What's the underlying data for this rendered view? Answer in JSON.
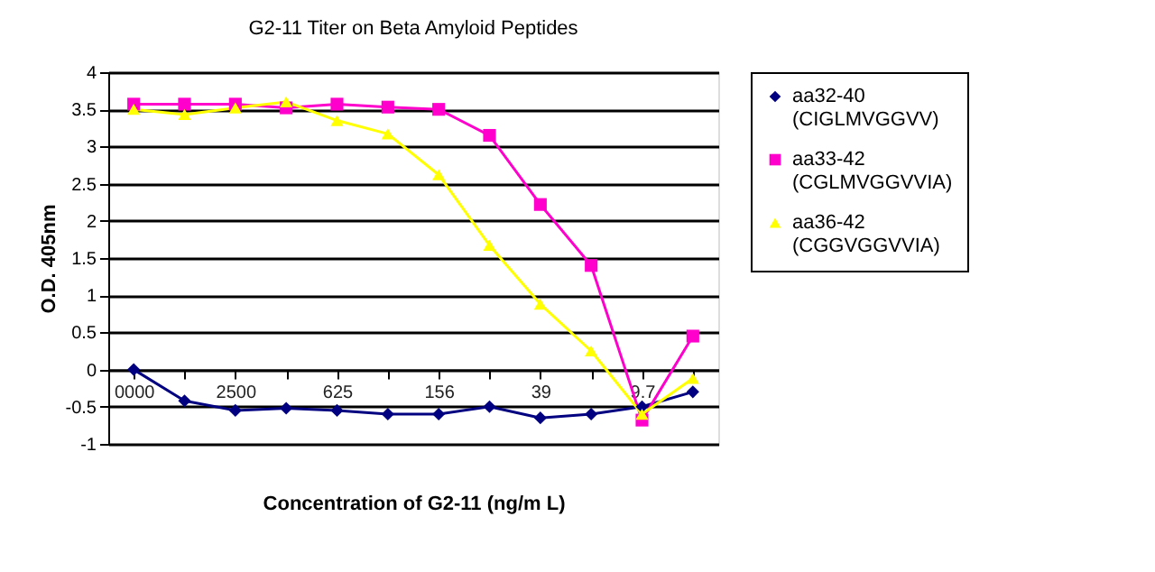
{
  "chart_data": {
    "type": "line",
    "title": "G2-11 Titer on Beta Amyloid Peptides",
    "xlabel": "Concentration of G2-11 (ng/m L)",
    "ylabel": "O.D. 405nm",
    "categories": [
      "0000",
      null,
      "2500",
      null,
      "625",
      null,
      "156",
      null,
      "39",
      null,
      "9.7",
      null
    ],
    "series": [
      {
        "name": "aa32-40\n(CIGLMVGGVV)",
        "color": "#000080",
        "marker": "diamond",
        "values": [
          0,
          -0.42,
          -0.55,
          -0.52,
          -0.55,
          -0.6,
          -0.6,
          -0.5,
          -0.65,
          -0.6,
          -0.5,
          -0.3
        ]
      },
      {
        "name": "aa33-42\n(CGLMVGGVVIA)",
        "color": "#ff00cc",
        "marker": "square",
        "values": [
          3.57,
          3.57,
          3.57,
          3.52,
          3.57,
          3.53,
          3.5,
          3.15,
          2.22,
          1.4,
          -0.68,
          0.45
        ]
      },
      {
        "name": "aa36-42\n(CGGVGGVVIA)",
        "color": "#ffff00",
        "marker": "triangle",
        "values": [
          3.5,
          3.43,
          3.52,
          3.6,
          3.35,
          3.17,
          2.62,
          1.67,
          0.88,
          0.25,
          -0.6,
          -0.12
        ]
      }
    ],
    "ylim": [
      -1,
      4
    ],
    "yticks": [
      -1,
      -0.5,
      0,
      0.5,
      1,
      1.5,
      2,
      2.5,
      3,
      3.5,
      4
    ],
    "grid": "y",
    "legend": "right"
  }
}
